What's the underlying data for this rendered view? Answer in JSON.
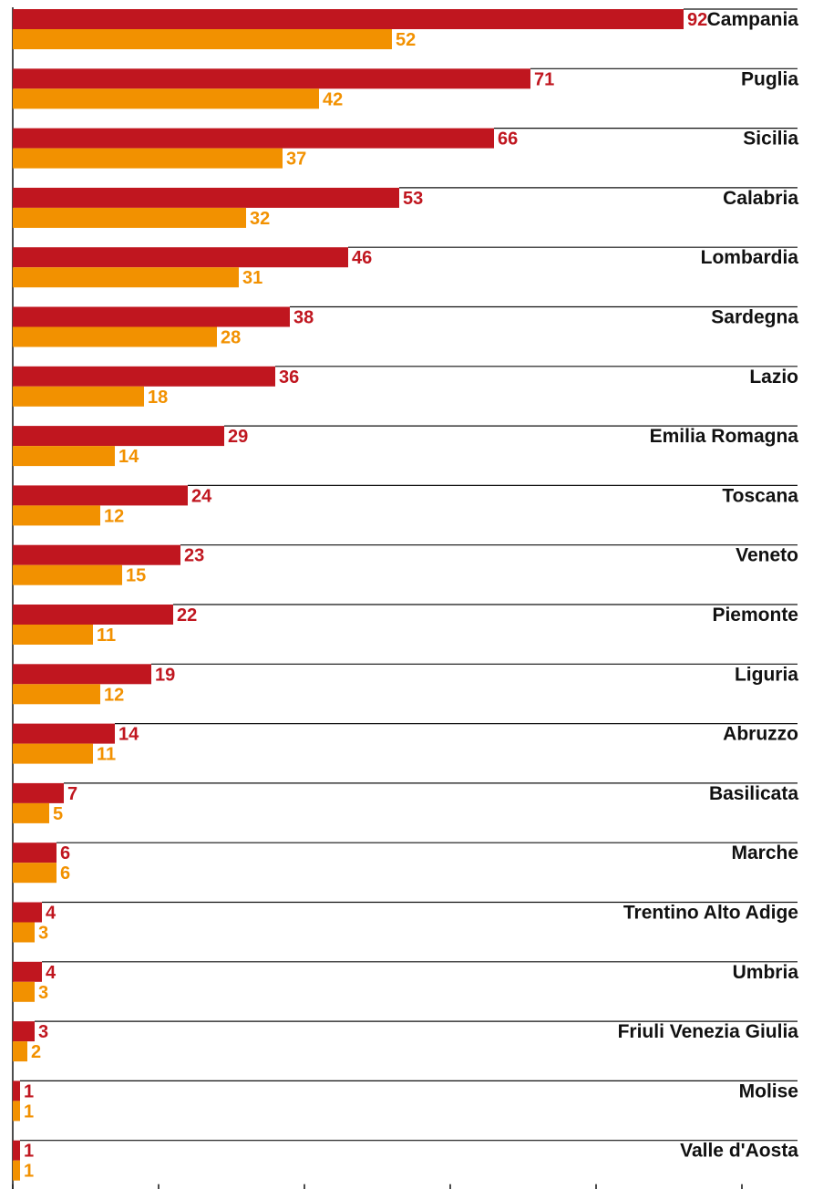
{
  "chart_data": {
    "type": "bar",
    "orientation": "horizontal",
    "title": "",
    "xlabel": "",
    "ylabel": "",
    "xlim": [
      0,
      100
    ],
    "grid": false,
    "legend": "none",
    "categories": [
      "Campania",
      "Puglia",
      "Sicilia",
      "Calabria",
      "Lombardia",
      "Sardegna",
      "Lazio",
      "Emilia Romagna",
      "Toscana",
      "Veneto",
      "Piemonte",
      "Liguria",
      "Abruzzo",
      "Basilicata",
      "Marche",
      "Trentino Alto Adige",
      "Umbria",
      "Friuli Venezia Giulia",
      "Molise",
      "Valle d'Aosta"
    ],
    "series": [
      {
        "color": "#c0161f",
        "values": [
          92,
          71,
          66,
          53,
          46,
          38,
          36,
          29,
          24,
          23,
          22,
          19,
          14,
          7,
          6,
          4,
          4,
          3,
          1,
          1
        ]
      },
      {
        "color": "#f29100",
        "values": [
          52,
          42,
          37,
          32,
          31,
          28,
          18,
          14,
          12,
          15,
          11,
          12,
          11,
          5,
          6,
          3,
          3,
          2,
          1,
          1
        ]
      }
    ]
  }
}
